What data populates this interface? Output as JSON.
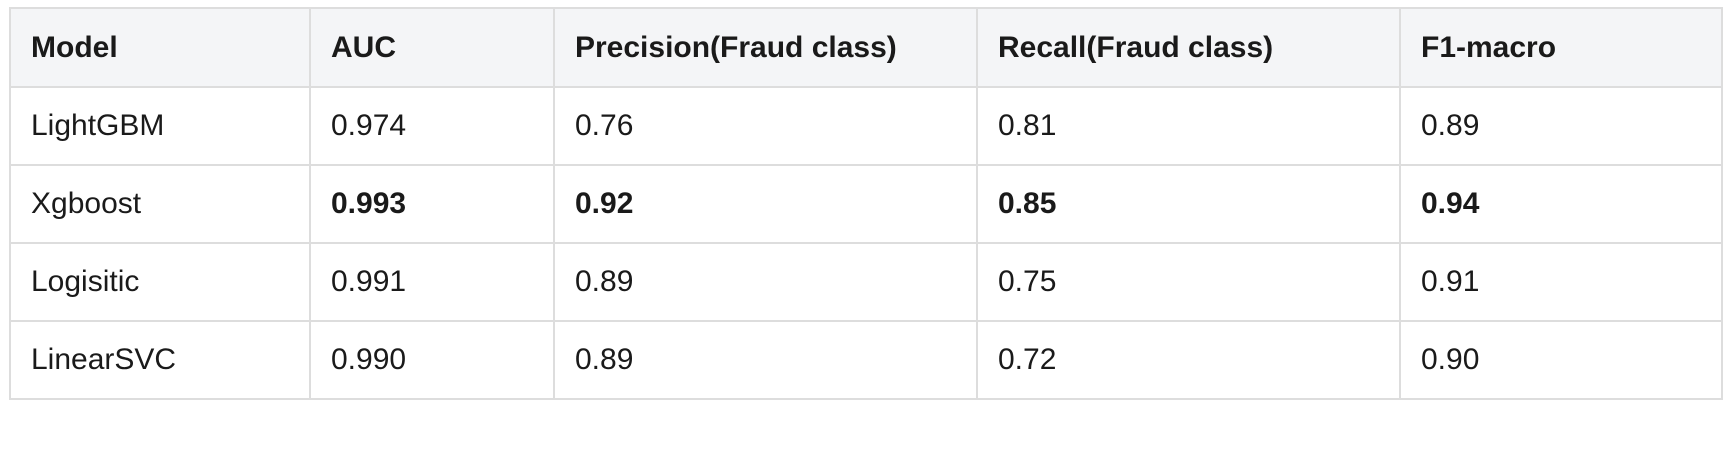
{
  "table": {
    "headers": [
      "Model",
      "AUC",
      "Precision(Fraud class)",
      "Recall(Fraud class)",
      "F1-macro"
    ],
    "rows": [
      {
        "model": "LightGBM",
        "auc": "0.974",
        "precision": "0.76",
        "recall": "0.81",
        "f1": "0.89",
        "bold": false
      },
      {
        "model": "Xgboost",
        "auc": "0.993",
        "precision": "0.92",
        "recall": "0.85",
        "f1": "0.94",
        "bold": true
      },
      {
        "model": "Logisitic",
        "auc": "0.991",
        "precision": "0.89",
        "recall": "0.75",
        "f1": "0.91",
        "bold": false
      },
      {
        "model": "LinearSVC",
        "auc": "0.990",
        "precision": "0.89",
        "recall": "0.72",
        "f1": "0.90",
        "bold": false
      }
    ]
  },
  "colors": {
    "header_bg": "#f4f5f7",
    "border": "#dddddd",
    "text": "#1a1a1a"
  }
}
